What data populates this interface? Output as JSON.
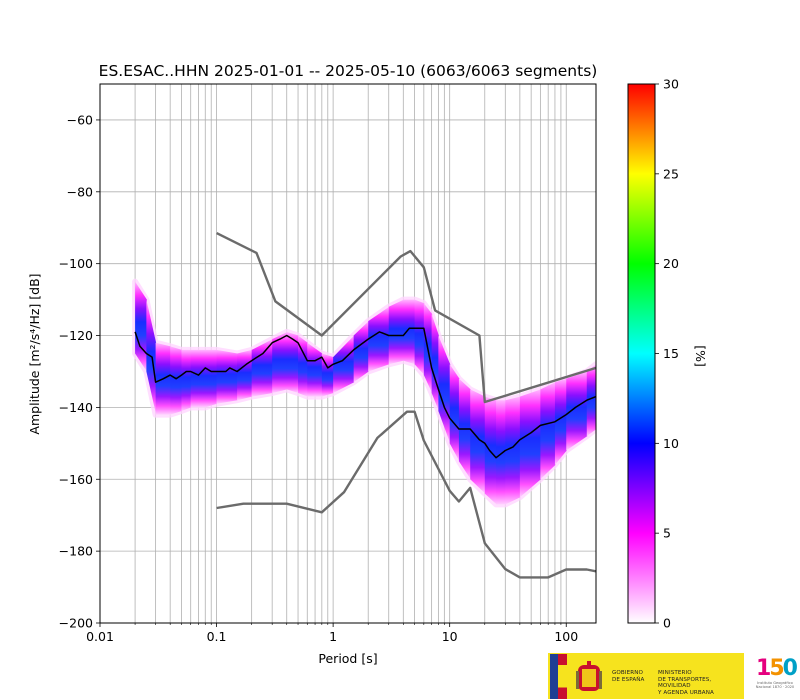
{
  "chart_data": {
    "type": "heatmap",
    "title": "ES.ESAC..HHN   2025-01-01 -- 2025-05-10  (6063/6063 segments)",
    "xlabel": "Period [s]",
    "ylabel": "Amplitude [m²/s⁴/Hz] [dB]",
    "x_scale": "log",
    "xlim": [
      0.01,
      180
    ],
    "ylim": [
      -200,
      -50
    ],
    "x_ticks": [
      0.01,
      0.1,
      1,
      10,
      100
    ],
    "x_tick_labels": [
      "0.01",
      "0.1",
      "1",
      "10",
      "100"
    ],
    "y_ticks": [
      -200,
      -180,
      -160,
      -140,
      -120,
      -100,
      -80,
      -60
    ],
    "y_tick_labels": [
      "−200",
      "−180",
      "−160",
      "−140",
      "−120",
      "−100",
      "−80",
      "−60"
    ],
    "grid": true,
    "colorbar": {
      "label": "[%]",
      "range": [
        0,
        30
      ],
      "ticks": [
        0,
        5,
        10,
        15,
        20,
        25,
        30
      ],
      "tick_labels": [
        "0",
        "5",
        "10",
        "15",
        "20",
        "25",
        "30"
      ],
      "colors": [
        "#ffffff",
        "#ff00ff",
        "#0000ff",
        "#00ffff",
        "#00ff00",
        "#ffff00",
        "#ff0000"
      ]
    },
    "density_band": {
      "period": [
        0.02,
        0.025,
        0.03,
        0.04,
        0.05,
        0.06,
        0.08,
        0.1,
        0.15,
        0.2,
        0.3,
        0.4,
        0.5,
        0.6,
        0.8,
        1,
        1.5,
        2,
        3,
        4,
        5,
        6,
        7,
        8,
        10,
        12,
        15,
        20,
        25,
        30,
        40,
        60,
        80,
        100,
        150,
        180
      ],
      "upper": [
        -105,
        -110,
        -122,
        -123,
        -124,
        -124,
        -124,
        -124,
        -125,
        -124,
        -121,
        -119,
        -120,
        -122,
        -125,
        -126,
        -120,
        -116,
        -112,
        -110,
        -110,
        -111,
        -114,
        -120,
        -128,
        -132,
        -135,
        -137,
        -138,
        -138,
        -137,
        -135,
        -133,
        -132,
        -130,
        -128
      ],
      "lower": [
        -125,
        -130,
        -142,
        -142,
        -141,
        -140,
        -140,
        -139,
        -138,
        -137,
        -136,
        -135,
        -136,
        -137,
        -137,
        -136,
        -133,
        -130,
        -128,
        -127,
        -128,
        -131,
        -136,
        -141,
        -150,
        -155,
        -160,
        -164,
        -167,
        -167,
        -165,
        -160,
        -156,
        -152,
        -148,
        -146
      ]
    },
    "series": [
      {
        "role": "median",
        "color": "#000000",
        "x": [
          0.02,
          0.022,
          0.025,
          0.028,
          0.03,
          0.035,
          0.04,
          0.045,
          0.05,
          0.055,
          0.06,
          0.07,
          0.08,
          0.09,
          0.1,
          0.12,
          0.13,
          0.15,
          0.18,
          0.2,
          0.25,
          0.3,
          0.35,
          0.4,
          0.45,
          0.5,
          0.6,
          0.7,
          0.8,
          0.9,
          1.0,
          1.2,
          1.5,
          2.0,
          2.5,
          3.0,
          3.5,
          4.0,
          4.5,
          5.0,
          6.0,
          7.0,
          8.0,
          9.0,
          10.0,
          12.0,
          15.0,
          18.0,
          20.0,
          22.0,
          25.0,
          30.0,
          35.0,
          40.0,
          50.0,
          60.0,
          80.0,
          100.0,
          120.0,
          150.0,
          180.0
        ],
        "y": [
          -119,
          -123,
          -125,
          -126,
          -133,
          -132,
          -131,
          -132,
          -131,
          -130,
          -130,
          -131,
          -129,
          -130,
          -130,
          -130,
          -129,
          -130,
          -128,
          -127,
          -125,
          -122,
          -121,
          -120,
          -121,
          -122,
          -127,
          -127,
          -126,
          -129,
          -128,
          -127,
          -124,
          -121,
          -119,
          -120,
          -120,
          -120,
          -118,
          -118,
          -118,
          -129,
          -135,
          -140,
          -143,
          -146,
          -146,
          -149,
          -150,
          -152,
          -154,
          -152,
          -151,
          -149,
          -147,
          -145,
          -144,
          -142,
          -140,
          -138,
          -137
        ]
      },
      {
        "role": "upper limit",
        "color": "#6b6b6b",
        "x": [
          0.1,
          0.22,
          0.32,
          0.8,
          3.8,
          4.6,
          6.0,
          7.5,
          18.0,
          20.0,
          180.0
        ],
        "y": [
          -91.5,
          -97,
          -110.5,
          -120,
          -98,
          -96.5,
          -101,
          -113,
          -120,
          -138.5,
          -129
        ]
      },
      {
        "role": "lower limit",
        "color": "#6b6b6b",
        "x": [
          0.1,
          0.17,
          0.4,
          0.8,
          1.24,
          2.4,
          4.3,
          5.0,
          6.0,
          10.0,
          12.0,
          15.0,
          20.0,
          30.0,
          40.0,
          70.0,
          100.0,
          150.0,
          180.0
        ],
        "y": [
          -168,
          -166.8,
          -166.8,
          -169.2,
          -163.6,
          -148.5,
          -141.2,
          -141.2,
          -149.2,
          -163.2,
          -166.2,
          -162.4,
          -177.8,
          -185,
          -187.3,
          -187.3,
          -185.1,
          -185.1,
          -185.6
        ]
      }
    ]
  },
  "logos": {
    "gov_text": "GOBIERNO\nDE ESPAÑA",
    "ministry_text": "MINISTERIO\nDE TRANSPORTES, MOVILIDAD\nY AGENDA URBANA",
    "ign_big": "150",
    "ign_small": "Instituto Geográfico Nacional 1870 · 2020"
  }
}
